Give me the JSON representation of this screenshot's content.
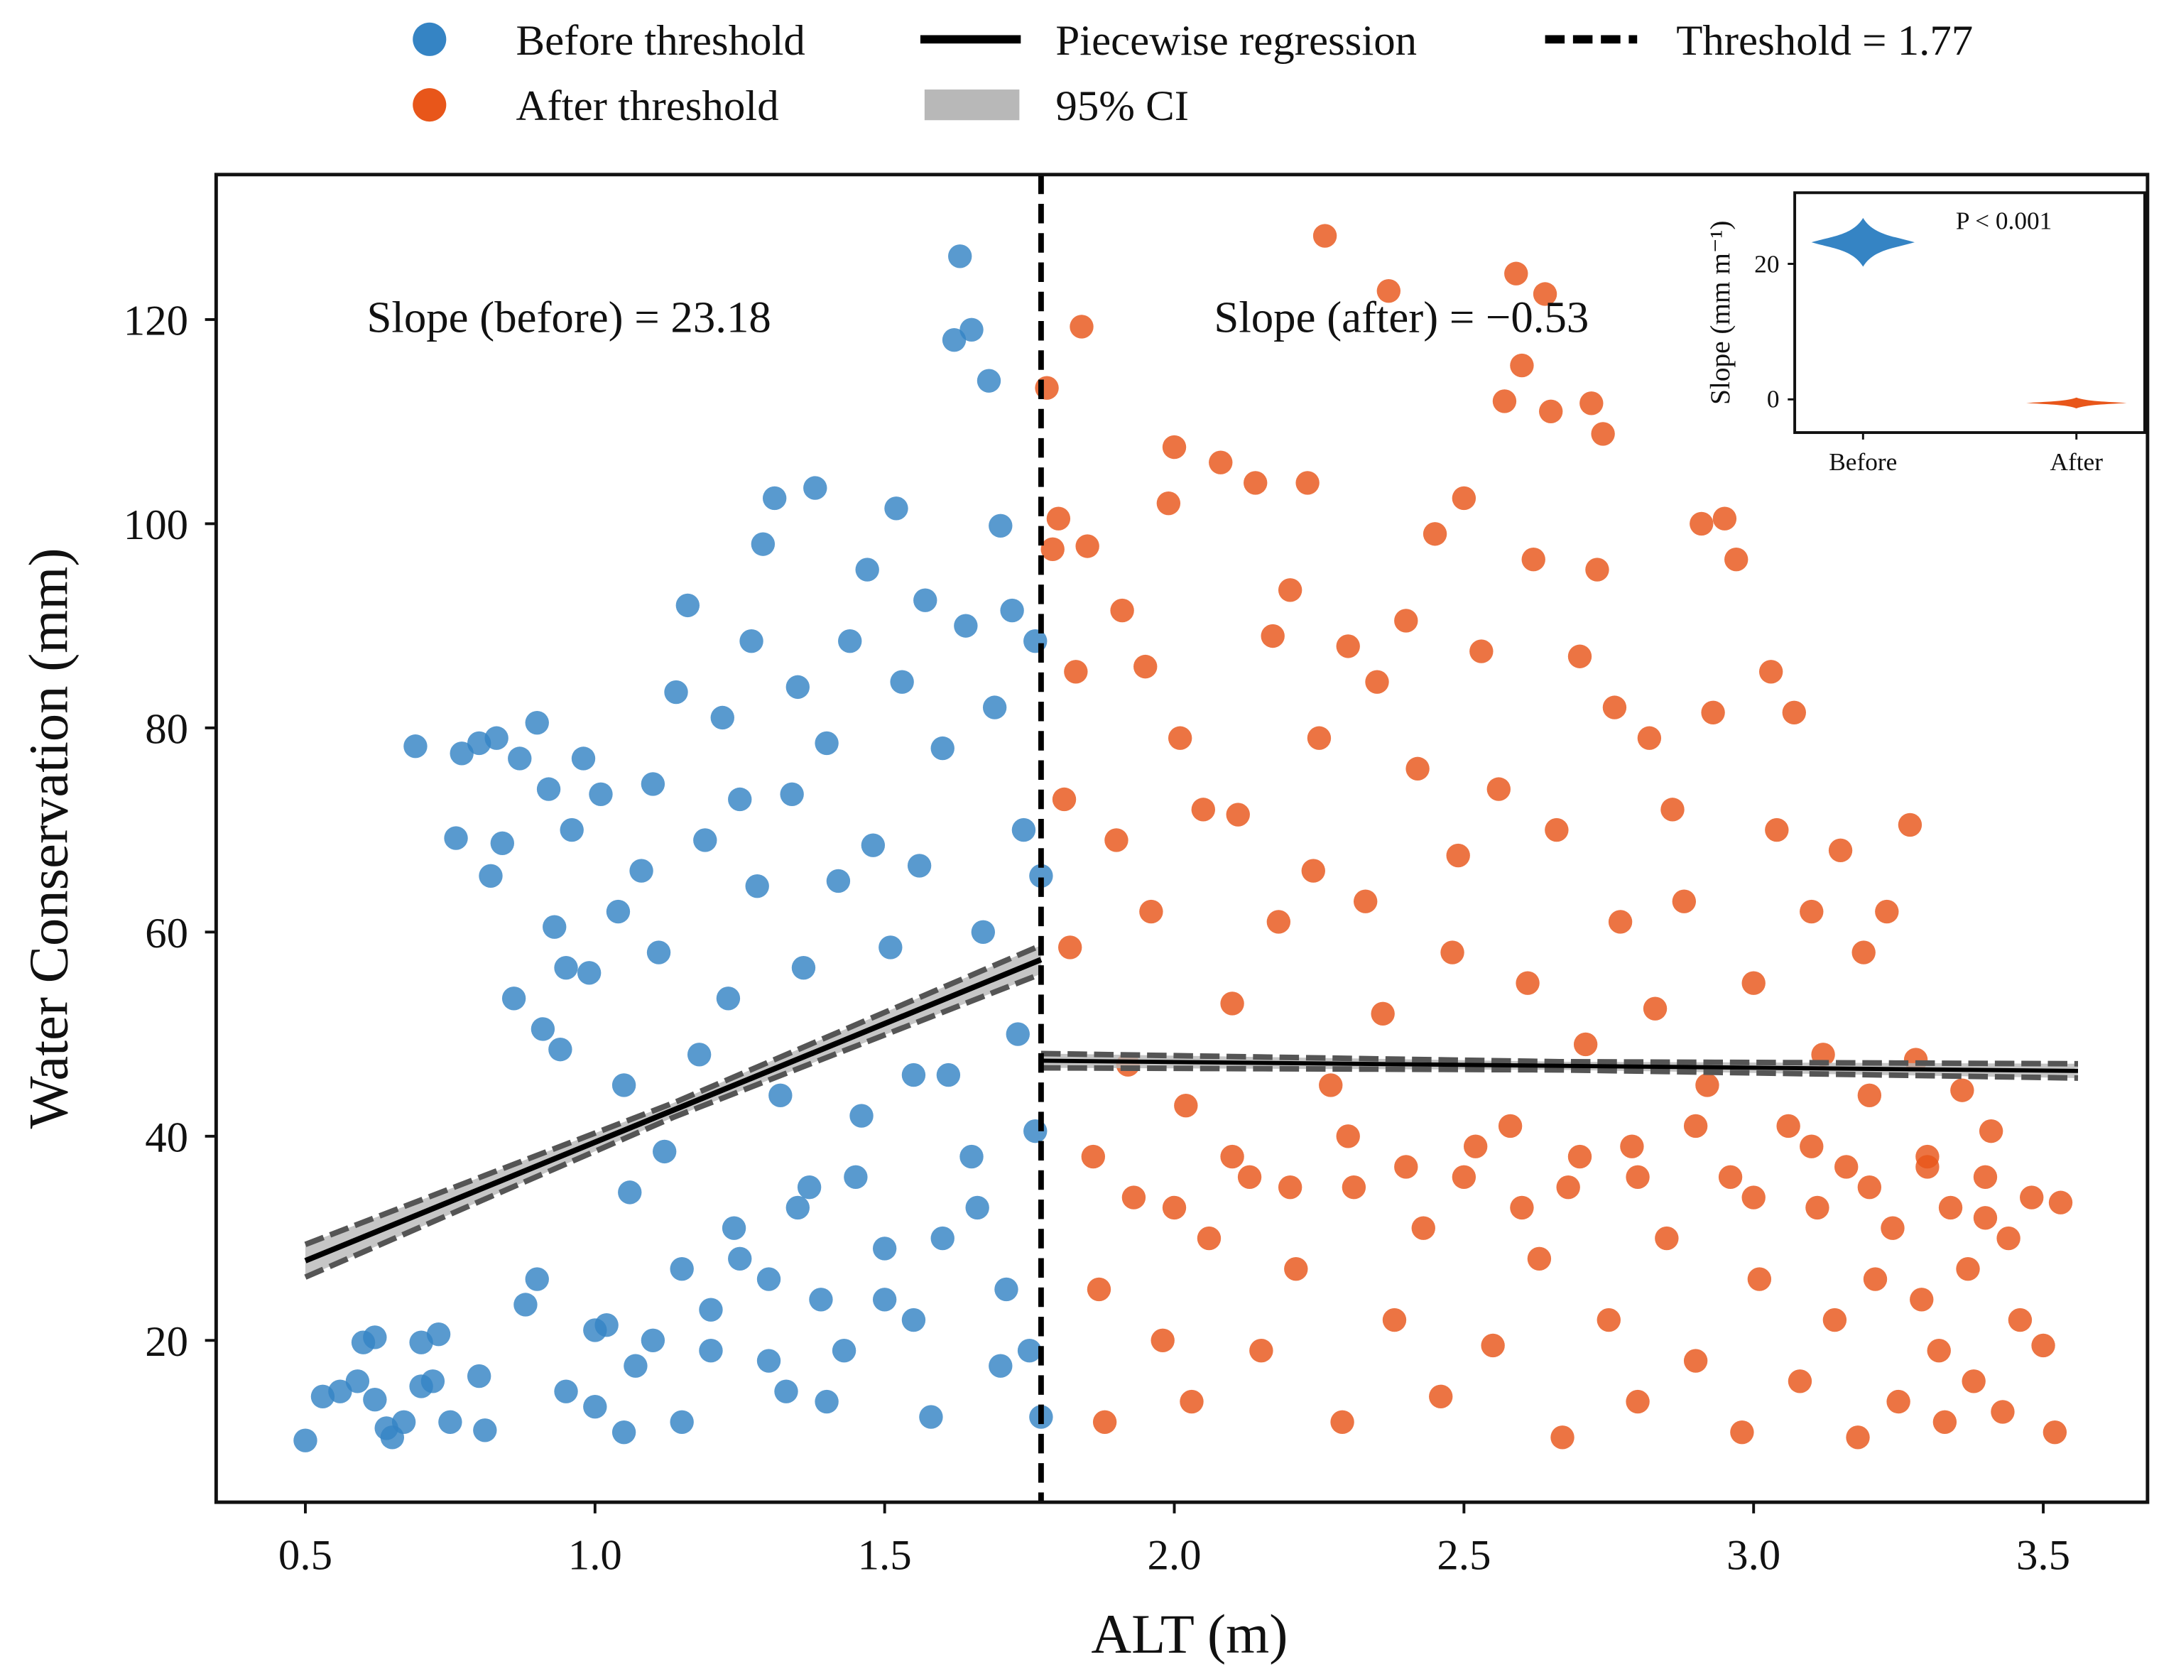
{
  "chart_data": {
    "type": "scatter",
    "xlabel": "ALT (m)",
    "ylabel": "Water Conservation (mm)",
    "xlim": [
      0.346,
      3.68
    ],
    "ylim": [
      4.15,
      134.2
    ],
    "xticks": [
      "0.5",
      "1.0",
      "1.5",
      "2.0",
      "2.5",
      "3.0",
      "3.5"
    ],
    "xtick_values": [
      0.5,
      1.0,
      1.5,
      2.0,
      2.5,
      3.0,
      3.5
    ],
    "yticks": [
      "20",
      "40",
      "60",
      "80",
      "100",
      "120"
    ],
    "ytick_values": [
      20,
      40,
      60,
      80,
      100,
      120
    ],
    "grid": false,
    "legend_placement": "top-center (outside)",
    "legend": {
      "before": "Before threshold",
      "after": "After threshold",
      "regression": "Piecewise regression",
      "ci": "95% CI",
      "threshold": "Threshold = 1.77"
    },
    "colors": {
      "before": "#3584c4",
      "after": "#e8561a",
      "ci": "#b8b8b8",
      "line": "#000000"
    },
    "threshold": 1.77,
    "annotations": {
      "slope_before": "Slope (before) = 23.18",
      "slope_after": "Slope (after) = −0.53"
    },
    "regression": {
      "before": {
        "x": [
          0.5,
          1.77
        ],
        "y": [
          27.8,
          57.3
        ],
        "ci_halfwidth": [
          1.6,
          0.7,
          1.4
        ]
      },
      "after": {
        "x": [
          1.77,
          3.56
        ],
        "y": [
          47.4,
          46.4
        ],
        "ci_halfwidth": [
          0.7,
          0.4,
          0.7
        ]
      }
    },
    "series": [
      {
        "name": "Before threshold",
        "points": [
          [
            0.5,
            10.2
          ],
          [
            0.53,
            14.5
          ],
          [
            0.56,
            15
          ],
          [
            0.59,
            16
          ],
          [
            0.6,
            19.8
          ],
          [
            0.62,
            20.3
          ],
          [
            0.62,
            14.2
          ],
          [
            0.64,
            11.4
          ],
          [
            0.65,
            10.5
          ],
          [
            0.67,
            12
          ],
          [
            0.69,
            78.2
          ],
          [
            0.7,
            15.5
          ],
          [
            0.7,
            19.8
          ],
          [
            0.72,
            16
          ],
          [
            0.73,
            20.6
          ],
          [
            0.75,
            12
          ],
          [
            0.76,
            69.2
          ],
          [
            0.77,
            77.5
          ],
          [
            0.8,
            78.5
          ],
          [
            0.8,
            16.5
          ],
          [
            0.81,
            11.2
          ],
          [
            0.82,
            65.5
          ],
          [
            0.83,
            79
          ],
          [
            0.84,
            68.7
          ],
          [
            0.86,
            53.5
          ],
          [
            0.87,
            77
          ],
          [
            0.88,
            23.5
          ],
          [
            0.9,
            80.5
          ],
          [
            0.91,
            50.5
          ],
          [
            0.92,
            74
          ],
          [
            0.93,
            60.5
          ],
          [
            0.94,
            48.5
          ],
          [
            0.95,
            56.5
          ],
          [
            0.96,
            70
          ],
          [
            0.98,
            77
          ],
          [
            0.99,
            56
          ],
          [
            1.0,
            13.5
          ],
          [
            1.01,
            73.5
          ],
          [
            1.02,
            21.5
          ],
          [
            1.04,
            62
          ],
          [
            1.05,
            45
          ],
          [
            1.06,
            34.5
          ],
          [
            1.07,
            17.5
          ],
          [
            1.08,
            66
          ],
          [
            1.1,
            74.5
          ],
          [
            1.11,
            58
          ],
          [
            1.12,
            38.5
          ],
          [
            1.14,
            83.5
          ],
          [
            1.15,
            27
          ],
          [
            1.16,
            92
          ],
          [
            1.18,
            48
          ],
          [
            1.19,
            69
          ],
          [
            1.2,
            19
          ],
          [
            1.22,
            81
          ],
          [
            1.23,
            53.5
          ],
          [
            1.24,
            31
          ],
          [
            1.25,
            73
          ],
          [
            1.27,
            88.5
          ],
          [
            1.28,
            64.5
          ],
          [
            1.29,
            98
          ],
          [
            1.3,
            26
          ],
          [
            1.31,
            102.5
          ],
          [
            1.32,
            44
          ],
          [
            1.33,
            15
          ],
          [
            1.34,
            73.5
          ],
          [
            1.35,
            84
          ],
          [
            1.36,
            56.5
          ],
          [
            1.37,
            35
          ],
          [
            1.38,
            103.5
          ],
          [
            1.39,
            24
          ],
          [
            1.4,
            78.5
          ],
          [
            1.42,
            65
          ],
          [
            1.43,
            19
          ],
          [
            1.44,
            88.5
          ],
          [
            1.46,
            42
          ],
          [
            1.47,
            95.5
          ],
          [
            1.48,
            68.5
          ],
          [
            1.5,
            29
          ],
          [
            1.51,
            58.5
          ],
          [
            1.52,
            101.5
          ],
          [
            1.53,
            84.5
          ],
          [
            1.55,
            22
          ],
          [
            1.56,
            66.5
          ],
          [
            1.57,
            92.5
          ],
          [
            1.58,
            12.5
          ],
          [
            1.6,
            78
          ],
          [
            1.61,
            46
          ],
          [
            1.62,
            118
          ],
          [
            1.63,
            126.2
          ],
          [
            1.64,
            90
          ],
          [
            1.65,
            119
          ],
          [
            1.66,
            33
          ],
          [
            1.67,
            60
          ],
          [
            1.68,
            114
          ],
          [
            1.69,
            82
          ],
          [
            1.7,
            99.8
          ],
          [
            1.71,
            25
          ],
          [
            1.72,
            91.5
          ],
          [
            1.73,
            50
          ],
          [
            1.74,
            70
          ],
          [
            1.75,
            19
          ],
          [
            1.76,
            88.5
          ],
          [
            1.76,
            40.5
          ],
          [
            1.77,
            12.5
          ],
          [
            1.77,
            65.5
          ],
          [
            1.0,
            21
          ],
          [
            1.1,
            20
          ],
          [
            1.2,
            23
          ],
          [
            1.3,
            18
          ],
          [
            1.4,
            14
          ],
          [
            1.5,
            24
          ],
          [
            1.6,
            30
          ],
          [
            0.9,
            26
          ],
          [
            0.95,
            15
          ],
          [
            1.05,
            11
          ],
          [
            1.15,
            12
          ],
          [
            1.25,
            28
          ],
          [
            1.35,
            33
          ],
          [
            1.45,
            36
          ],
          [
            1.55,
            46
          ],
          [
            1.65,
            38
          ],
          [
            1.7,
            17.5
          ]
        ]
      },
      {
        "name": "After threshold",
        "points": [
          [
            1.78,
            113.3
          ],
          [
            1.79,
            97.5
          ],
          [
            1.8,
            100.5
          ],
          [
            1.81,
            73
          ],
          [
            1.82,
            58.5
          ],
          [
            1.83,
            85.5
          ],
          [
            1.84,
            119.3
          ],
          [
            1.85,
            97.8
          ],
          [
            1.86,
            38
          ],
          [
            1.87,
            25
          ],
          [
            1.88,
            12
          ],
          [
            1.9,
            69
          ],
          [
            1.91,
            91.5
          ],
          [
            1.92,
            47
          ],
          [
            1.93,
            34
          ],
          [
            1.95,
            86
          ],
          [
            1.96,
            62
          ],
          [
            1.98,
            20
          ],
          [
            1.99,
            102
          ],
          [
            2.0,
            107.5
          ],
          [
            2.01,
            79
          ],
          [
            2.02,
            43
          ],
          [
            2.03,
            14
          ],
          [
            2.05,
            72
          ],
          [
            2.06,
            30
          ],
          [
            2.08,
            106
          ],
          [
            2.1,
            53
          ],
          [
            2.11,
            71.5
          ],
          [
            2.13,
            36
          ],
          [
            2.14,
            104
          ],
          [
            2.15,
            19
          ],
          [
            2.17,
            89
          ],
          [
            2.18,
            61
          ],
          [
            2.2,
            93.5
          ],
          [
            2.21,
            27
          ],
          [
            2.23,
            104
          ],
          [
            2.24,
            66
          ],
          [
            2.25,
            79
          ],
          [
            2.26,
            128.2
          ],
          [
            2.27,
            45
          ],
          [
            2.29,
            12
          ],
          [
            2.3,
            88
          ],
          [
            2.31,
            35
          ],
          [
            2.33,
            63
          ],
          [
            2.35,
            84.5
          ],
          [
            2.36,
            52
          ],
          [
            2.37,
            122.8
          ],
          [
            2.38,
            22
          ],
          [
            2.4,
            90.5
          ],
          [
            2.42,
            76
          ],
          [
            2.43,
            31
          ],
          [
            2.45,
            99
          ],
          [
            2.46,
            14.5
          ],
          [
            2.48,
            58
          ],
          [
            2.49,
            67.5
          ],
          [
            2.5,
            102.5
          ],
          [
            2.52,
            39
          ],
          [
            2.53,
            87.5
          ],
          [
            2.55,
            19.5
          ],
          [
            2.56,
            74
          ],
          [
            2.57,
            112
          ],
          [
            2.58,
            41
          ],
          [
            2.59,
            124.5
          ],
          [
            2.6,
            115.5
          ],
          [
            2.61,
            55
          ],
          [
            2.62,
            96.5
          ],
          [
            2.63,
            28
          ],
          [
            2.64,
            122.5
          ],
          [
            2.65,
            111
          ],
          [
            2.66,
            70
          ],
          [
            2.67,
            10.5
          ],
          [
            2.68,
            35
          ],
          [
            2.7,
            87
          ],
          [
            2.71,
            49
          ],
          [
            2.72,
            111.8
          ],
          [
            2.73,
            95.5
          ],
          [
            2.74,
            108.8
          ],
          [
            2.75,
            22
          ],
          [
            2.76,
            82
          ],
          [
            2.77,
            61
          ],
          [
            2.79,
            39
          ],
          [
            2.8,
            14
          ],
          [
            2.82,
            79
          ],
          [
            2.83,
            52.5
          ],
          [
            2.85,
            30
          ],
          [
            2.86,
            72
          ],
          [
            2.88,
            63
          ],
          [
            2.9,
            18
          ],
          [
            2.91,
            100
          ],
          [
            2.92,
            45
          ],
          [
            2.93,
            81.5
          ],
          [
            2.95,
            100.5
          ],
          [
            2.96,
            36
          ],
          [
            2.97,
            96.5
          ],
          [
            2.98,
            11
          ],
          [
            3.0,
            55
          ],
          [
            3.01,
            26
          ],
          [
            3.03,
            85.5
          ],
          [
            3.04,
            70
          ],
          [
            3.06,
            41
          ],
          [
            3.07,
            81.5
          ],
          [
            3.08,
            16
          ],
          [
            3.1,
            62
          ],
          [
            3.11,
            33
          ],
          [
            3.12,
            48
          ],
          [
            3.14,
            22
          ],
          [
            3.15,
            68
          ],
          [
            3.16,
            37
          ],
          [
            3.18,
            10.5
          ],
          [
            3.19,
            58
          ],
          [
            3.2,
            44
          ],
          [
            3.21,
            26
          ],
          [
            3.23,
            62
          ],
          [
            3.24,
            31
          ],
          [
            3.25,
            14
          ],
          [
            3.27,
            70.5
          ],
          [
            3.28,
            47.5
          ],
          [
            3.29,
            24
          ],
          [
            3.3,
            38
          ],
          [
            3.32,
            19
          ],
          [
            3.33,
            12
          ],
          [
            3.34,
            33
          ],
          [
            3.36,
            44.5
          ],
          [
            3.37,
            27
          ],
          [
            3.38,
            16
          ],
          [
            3.4,
            32
          ],
          [
            3.41,
            40.5
          ],
          [
            3.43,
            13
          ],
          [
            3.44,
            30
          ],
          [
            3.46,
            22
          ],
          [
            3.48,
            34
          ],
          [
            3.5,
            19.5
          ],
          [
            3.52,
            11
          ],
          [
            3.53,
            33.5
          ],
          [
            2.0,
            33
          ],
          [
            2.1,
            38
          ],
          [
            2.2,
            35
          ],
          [
            2.3,
            40
          ],
          [
            2.4,
            37
          ],
          [
            2.5,
            36
          ],
          [
            2.6,
            33
          ],
          [
            2.7,
            38
          ],
          [
            2.8,
            36
          ],
          [
            2.9,
            41
          ],
          [
            3.0,
            34
          ],
          [
            3.1,
            39
          ],
          [
            3.2,
            35
          ],
          [
            3.3,
            37
          ],
          [
            3.4,
            36
          ]
        ]
      }
    ],
    "inset": {
      "type": "violin",
      "ylabel": "Slope (mm m⁻¹)",
      "categories": [
        "Before",
        "After"
      ],
      "centers": [
        23.18,
        -0.53
      ],
      "spread": [
        1.8,
        0.4
      ],
      "yticks": [
        "0",
        "20"
      ],
      "ytick_values": [
        0,
        20
      ],
      "ylim": [
        -4.9,
        30.5
      ],
      "annotation": "P < 0.001"
    }
  }
}
